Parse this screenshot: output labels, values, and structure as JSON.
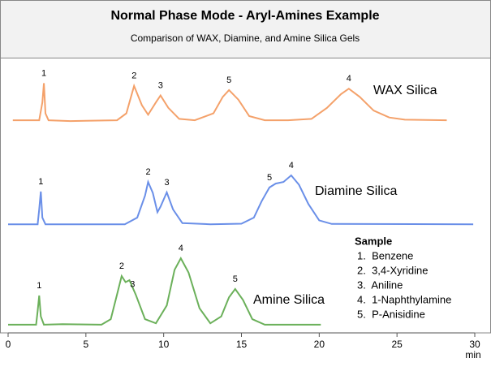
{
  "chart_data": {
    "type": "line",
    "title": "Normal Phase Mode - Aryl-Amines Example",
    "subtitle": "Comparison of WAX, Diamine, and Amine Silica Gels",
    "x_label": "min",
    "xlim": [
      0,
      30
    ],
    "xticks": [
      0,
      5,
      10,
      15,
      20,
      25,
      30
    ],
    "ylim": [
      0,
      100
    ],
    "series": [
      {
        "name": "WAX Silica",
        "color": "#f4a16a",
        "x": [
          0.3,
          2.0,
          2.2,
          2.3,
          2.4,
          2.6,
          4.0,
          5.0,
          7.0,
          7.6,
          8.1,
          8.6,
          9.0,
          9.5,
          9.8,
          10.3,
          11.0,
          12.0,
          13.2,
          13.8,
          14.2,
          14.8,
          15.5,
          16.5,
          18.0,
          19.5,
          20.5,
          21.4,
          21.9,
          22.6,
          23.5,
          24.5,
          25.5,
          28.2
        ],
        "values": [
          77.5,
          77.5,
          84,
          91,
          80,
          77.5,
          77.2,
          77.3,
          77.5,
          80,
          90,
          83,
          79.5,
          84,
          86.5,
          82,
          78,
          77.5,
          80,
          86,
          88.5,
          85,
          79,
          77.5,
          77.5,
          78,
          82,
          87,
          89,
          86,
          81,
          78.5,
          77.7,
          77.5
        ],
        "peaks": [
          {
            "label": "1",
            "x": 2.3
          },
          {
            "label": "2",
            "x": 8.1
          },
          {
            "label": "3",
            "x": 9.8
          },
          {
            "label": "5",
            "x": 14.2
          },
          {
            "label": "4",
            "x": 21.9
          }
        ]
      },
      {
        "name": "Diamine Silica",
        "color": "#6a8fe8",
        "x": [
          0,
          1.9,
          2.0,
          2.1,
          2.2,
          2.4,
          7.5,
          8.3,
          8.8,
          9.0,
          9.3,
          9.6,
          9.8,
          10.2,
          10.6,
          11.2,
          13.0,
          15.0,
          15.8,
          16.3,
          16.8,
          17.2,
          17.7,
          18.2,
          18.7,
          19.3,
          20.0,
          20.8,
          29.9
        ],
        "values": [
          39.6,
          39.6,
          45,
          51.5,
          42,
          39.6,
          39.6,
          42,
          50,
          55,
          51,
          44,
          46,
          51.2,
          45,
          40,
          39.6,
          39.8,
          42,
          48,
          53,
          54.4,
          55,
          57.4,
          54,
          47,
          41,
          39.7,
          39.6
        ],
        "peaks": [
          {
            "label": "1",
            "x": 2.1
          },
          {
            "label": "2",
            "x": 9.0
          },
          {
            "label": "3",
            "x": 10.2
          },
          {
            "label": "5",
            "x": 16.8
          },
          {
            "label": "4",
            "x": 18.2
          }
        ]
      },
      {
        "name": "Amine Silica",
        "color": "#6bb05a",
        "x": [
          0,
          1.8,
          1.9,
          2.0,
          2.1,
          2.3,
          3.5,
          6.0,
          6.6,
          7.0,
          7.3,
          7.55,
          7.8,
          8.2,
          8.8,
          9.5,
          10.2,
          10.7,
          11.1,
          11.6,
          12.3,
          13.0,
          13.7,
          14.2,
          14.6,
          15.1,
          15.7,
          16.5,
          20.1
        ],
        "values": [
          3,
          3,
          8,
          13.6,
          6,
          3,
          3.2,
          3,
          5,
          14,
          20.7,
          18.5,
          19.2,
          14,
          5,
          3.5,
          10,
          23,
          27.2,
          22,
          9,
          3.5,
          6,
          13,
          16,
          12,
          5,
          3,
          3
        ],
        "peaks": [
          {
            "label": "1",
            "x": 2.0
          },
          {
            "label": "2",
            "x": 7.3
          },
          {
            "label": "3",
            "x": 8.0
          },
          {
            "label": "4",
            "x": 11.1
          },
          {
            "label": "5",
            "x": 14.6
          }
        ]
      }
    ],
    "sample_legend": {
      "title": "Sample",
      "items": [
        "1.  Benzene",
        "2.  3,4-Xyridine",
        "3.  Aniline",
        "4.  1-Naphthylamine",
        "5.  P-Anisidine"
      ]
    }
  }
}
